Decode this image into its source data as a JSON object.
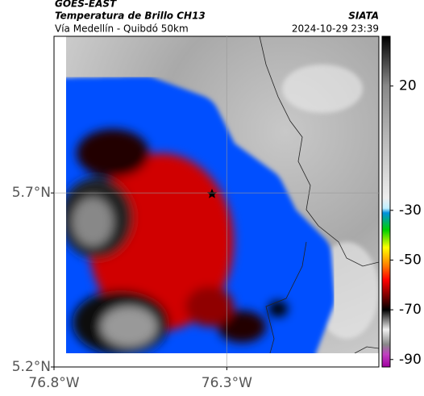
{
  "header": {
    "title": "GOES-EAST",
    "subtitle": "Temperatura de Brillo CH13",
    "region": "Vía Medellín - Quibdó 50km",
    "source": "SIATA",
    "timestamp": "2024-10-29 23:39"
  },
  "map": {
    "xlim": [
      -76.8,
      -75.86
    ],
    "ylim": [
      5.2,
      6.15
    ],
    "xticks": [
      {
        "value": -76.8,
        "label": "76.8°W"
      },
      {
        "value": -76.3,
        "label": "76.3°W"
      }
    ],
    "yticks": [
      {
        "value": 5.2,
        "label": "5.2°N"
      },
      {
        "value": 5.7,
        "label": "5.7°N"
      }
    ],
    "grid": true
  },
  "colorbar": {
    "lim": [
      -93,
      40
    ],
    "ticks": [
      20,
      -30,
      -50,
      -70,
      -90
    ]
  }
}
